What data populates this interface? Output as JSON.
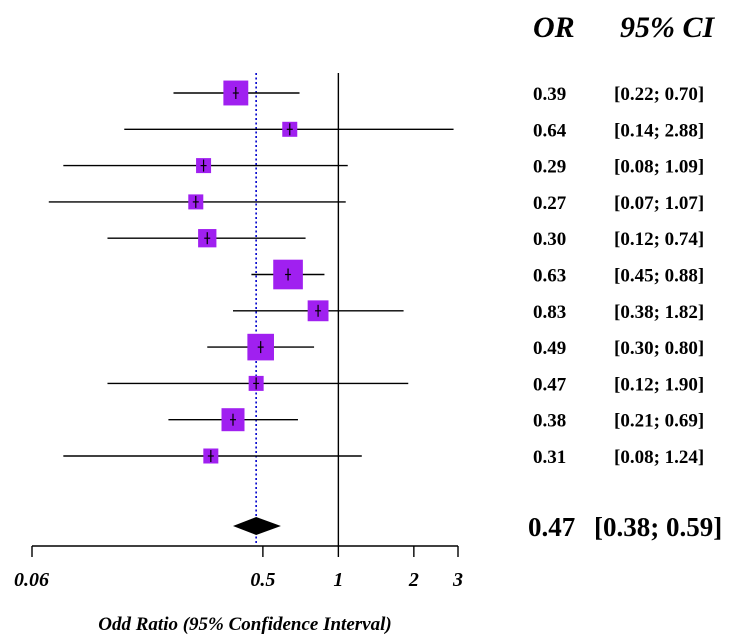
{
  "chart_data": {
    "type": "forest",
    "headers": {
      "or": "OR",
      "ci": "95% CI"
    },
    "xlabel": "Odd Ratio (95% Confidence Interval)",
    "x_scale": "log",
    "xlim": [
      0.06,
      3
    ],
    "ticks": [
      {
        "value": 0.06,
        "label": "0.06"
      },
      {
        "value": 0.5,
        "label": "0.5"
      },
      {
        "value": 1,
        "label": "1"
      },
      {
        "value": 2,
        "label": "2"
      },
      {
        "value": 3,
        "label": "3"
      }
    ],
    "reference_line": 1,
    "summary_line": 0.47,
    "studies": [
      {
        "or": 0.39,
        "lo": 0.22,
        "hi": 0.7,
        "weight": 5,
        "or_text": "0.39",
        "ci_text": "[0.22; 0.70]"
      },
      {
        "or": 0.64,
        "lo": 0.14,
        "hi": 2.88,
        "weight": 1,
        "or_text": "0.64",
        "ci_text": "[0.14; 2.88]"
      },
      {
        "or": 0.29,
        "lo": 0.08,
        "hi": 1.09,
        "weight": 1,
        "or_text": "0.29",
        "ci_text": "[0.08; 1.09]"
      },
      {
        "or": 0.27,
        "lo": 0.07,
        "hi": 1.07,
        "weight": 1,
        "or_text": "0.27",
        "ci_text": "[0.07; 1.07]"
      },
      {
        "or": 0.3,
        "lo": 0.12,
        "hi": 0.74,
        "weight": 2,
        "or_text": "0.30",
        "ci_text": "[0.12; 0.74]"
      },
      {
        "or": 0.63,
        "lo": 0.45,
        "hi": 0.88,
        "weight": 8,
        "or_text": "0.63",
        "ci_text": "[0.45; 0.88]"
      },
      {
        "or": 0.83,
        "lo": 0.38,
        "hi": 1.82,
        "weight": 3,
        "or_text": "0.83",
        "ci_text": "[0.38; 1.82]"
      },
      {
        "or": 0.49,
        "lo": 0.3,
        "hi": 0.8,
        "weight": 6,
        "or_text": "0.49",
        "ci_text": "[0.30; 0.80]"
      },
      {
        "or": 0.47,
        "lo": 0.12,
        "hi": 1.9,
        "weight": 1,
        "or_text": "0.47",
        "ci_text": "[0.12; 1.90]"
      },
      {
        "or": 0.38,
        "lo": 0.21,
        "hi": 0.69,
        "weight": 4,
        "or_text": "0.38",
        "ci_text": "[0.21; 0.69]"
      },
      {
        "or": 0.31,
        "lo": 0.08,
        "hi": 1.24,
        "weight": 1,
        "or_text": "0.31",
        "ci_text": "[0.08; 1.24]"
      }
    ],
    "pooled": {
      "or": 0.47,
      "lo": 0.38,
      "hi": 0.59,
      "or_text": "0.47",
      "ci_text": "[0.38; 0.59]"
    },
    "colors": {
      "box": "#a020f0",
      "summary_line": "#0000cc",
      "diamond": "#000000",
      "lines": "#000000"
    }
  }
}
